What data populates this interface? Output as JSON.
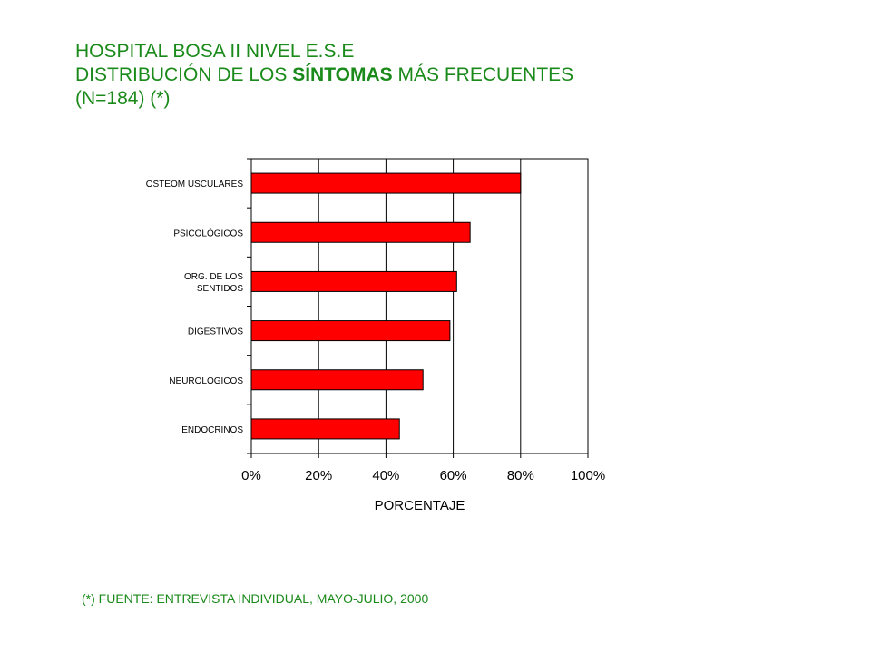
{
  "header": {
    "line1": "HOSPITAL BOSA II NIVEL E.S.E",
    "line2_prefix": "DISTRIBUCIÓN DE LOS ",
    "line2_bold": "SÍNTOMAS",
    "line2_suffix": " MÁS FRECUENTES",
    "line3": "(N=184) (*)"
  },
  "footnote": "(*) FUENTE: ENTREVISTA INDIVIDUAL, MAYO-JULIO, 2000",
  "colors": {
    "title": "#1a8a1a",
    "bar_fill": "#ff0000",
    "bar_stroke": "#000000",
    "grid": "#000000"
  },
  "chart_data": {
    "type": "bar",
    "orientation": "horizontal",
    "categories": [
      "OSTEOMUSCULARES",
      "PSICOLÓGICOS",
      "ORG. DE LOS SENTIDOS",
      "DIGESTIVOS",
      "NEUROLOGICOS",
      "ENDOCRINOS"
    ],
    "category_display": [
      [
        "OSTEOM USCULARES"
      ],
      [
        "PSICOLÓGICOS"
      ],
      [
        "ORG. DE LOS",
        "SENTIDOS"
      ],
      [
        "DIGESTIVOS"
      ],
      [
        "NEUROLOGICOS"
      ],
      [
        "ENDOCRINOS"
      ]
    ],
    "values": [
      80,
      65,
      61,
      59,
      51,
      44
    ],
    "xlabel": "PORCENTAJE",
    "xlim": [
      0,
      100
    ],
    "xticks": [
      0,
      20,
      40,
      60,
      80,
      100
    ],
    "xtick_labels": [
      "0%",
      "20%",
      "40%",
      "60%",
      "80%",
      "100%"
    ],
    "grid": "vertical",
    "legend": "none"
  }
}
